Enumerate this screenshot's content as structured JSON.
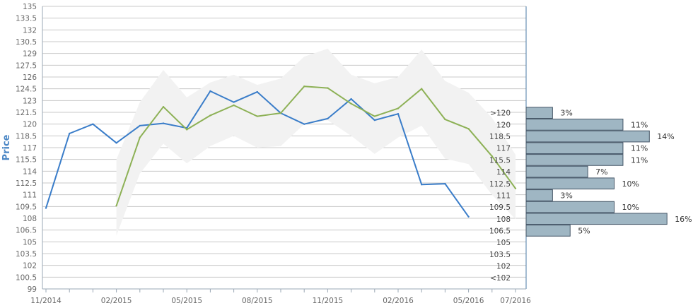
{
  "chart_data": {
    "type": "line",
    "ylabel": "Price",
    "ylim": [
      99,
      135
    ],
    "y_ticks": [
      "135",
      "133.5",
      "132",
      "130.5",
      "129",
      "127.5",
      "126",
      "124.5",
      "123",
      "121.5",
      "120",
      "118.5",
      "117",
      "115.5",
      "114",
      "112.5",
      "111",
      "109.5",
      "108",
      "106.5",
      "105",
      "103.5",
      "102",
      "100.5",
      "99"
    ],
    "x_ticks": [
      "11/2014",
      "02/2015",
      "05/2015",
      "08/2015",
      "11/2015",
      "02/2016",
      "05/2016",
      "07/2016"
    ],
    "grid": true,
    "colors": {
      "actual": "#3a7dc9",
      "forecast": "#8db156",
      "band": "#f2f2f2",
      "bars": "#9fb6c3"
    },
    "series": [
      {
        "role": "actual",
        "x": [
          "2014-11",
          "2014-12",
          "2015-01",
          "2015-02",
          "2015-03",
          "2015-04",
          "2015-05",
          "2015-06",
          "2015-07",
          "2015-08",
          "2015-09",
          "2015-10",
          "2015-11",
          "2015-12",
          "2016-01",
          "2016-02",
          "2016-03",
          "2016-04",
          "2016-05"
        ],
        "values": [
          109.3,
          118.8,
          120,
          117.6,
          119.8,
          120.1,
          119.5,
          124.2,
          122.8,
          124.1,
          121.4,
          120,
          120.7,
          123.2,
          120.5,
          121.3,
          112.3,
          112.4,
          108.2
        ]
      },
      {
        "role": "forecast",
        "x": [
          "2015-02",
          "2015-03",
          "2015-04",
          "2015-05",
          "2015-06",
          "2015-07",
          "2015-08",
          "2015-09",
          "2015-10",
          "2015-11",
          "2015-12",
          "2016-01",
          "2016-02",
          "2016-03",
          "2016-04",
          "2016-05",
          "2016-06",
          "2016-07"
        ],
        "values": [
          109.6,
          118.3,
          122.2,
          119.3,
          121.1,
          122.4,
          121,
          121.4,
          124.8,
          124.6,
          122.6,
          121,
          122,
          124.5,
          120.6,
          119.4,
          115.9,
          111.8
        ]
      },
      {
        "role": "range",
        "x": [
          "2015-02",
          "2015-03",
          "2015-04",
          "2015-05",
          "2015-06",
          "2015-07",
          "2015-08",
          "2015-09",
          "2015-10",
          "2015-11",
          "2015-12",
          "2016-01",
          "2016-02",
          "2016-03",
          "2016-04",
          "2016-05",
          "2016-06",
          "2016-07"
        ],
        "low": [
          105.8,
          113.7,
          117.5,
          115,
          117.2,
          118.5,
          117,
          117.2,
          120,
          120.5,
          118.5,
          116.2,
          118.3,
          119.8,
          115.6,
          114.9,
          111,
          107.9
        ],
        "high": [
          115.5,
          122.8,
          126.9,
          123.4,
          125.3,
          126.3,
          125,
          125.8,
          128.6,
          129.6,
          126.3,
          125.2,
          126,
          129.5,
          125.5,
          124,
          120.8,
          116.1
        ]
      }
    ],
    "distribution": {
      "labels": [
        "<102",
        "102",
        "103.5",
        "105",
        "106.5",
        "108",
        "109.5",
        "111",
        "112.5",
        "114",
        "115.5",
        "117",
        "118.5",
        "120",
        ">120"
      ],
      "percent": [
        0,
        0,
        0,
        0,
        5,
        16,
        10,
        3,
        10,
        7,
        11,
        11,
        14,
        11,
        3
      ],
      "percent_labels": [
        "",
        "",
        "",
        "",
        "5%",
        "16%",
        "10%",
        "3%",
        "10%",
        "7%",
        "11%",
        "11%",
        "14%",
        "11%",
        "3%"
      ]
    }
  }
}
